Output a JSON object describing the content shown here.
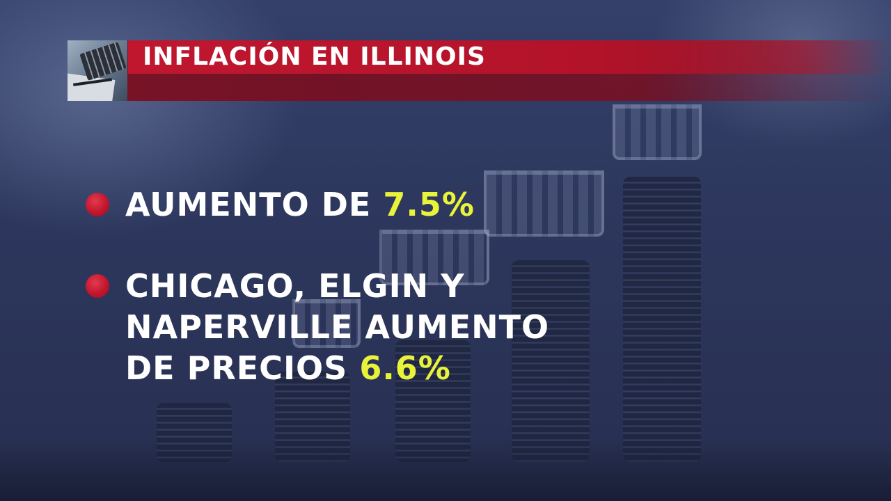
{
  "header": {
    "title": "INFLACIÓN EN ILLINOIS"
  },
  "bullets": [
    {
      "text": "AUMENTO DE",
      "highlight": "7.5%"
    },
    {
      "line1": "CHICAGO, ELGIN Y",
      "line2": "NAPERVILLE AUMENTO",
      "line3": "DE PRECIOS",
      "highlight": "6.6%"
    }
  ],
  "colors": {
    "accent_red": "#c0172f",
    "highlight_yellow": "#e9f33a",
    "text_white": "#ffffff",
    "background_navy": "#2c3558"
  }
}
